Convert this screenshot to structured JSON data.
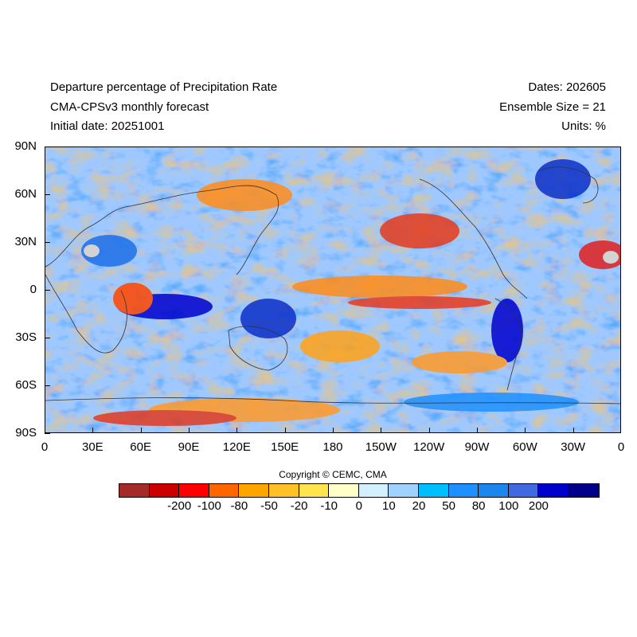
{
  "header": {
    "left_lines": [
      "Departure percentage of Precipitation Rate",
      "CMA-CPSv3 monthly forecast",
      "Initial date: 20251001"
    ],
    "right_lines": [
      "Dates: 202605",
      "Ensemble Size = 21",
      "Units: %"
    ]
  },
  "map": {
    "y_axis_labels": [
      "90N",
      "60N",
      "30N",
      "0",
      "30S",
      "60S",
      "90S"
    ],
    "x_axis_labels": [
      "0",
      "30E",
      "60E",
      "90E",
      "120E",
      "150E",
      "180",
      "150W",
      "120W",
      "90W",
      "60W",
      "30W",
      "0"
    ],
    "projection_note_colors": {
      "ocean_base": "#9ec8ff",
      "land_missing": "#d3d3d3"
    }
  },
  "footer": {
    "copyright": "Copyright © CEMC, CMA"
  },
  "colorbar": {
    "colors": [
      "#a52a2a",
      "#cc0000",
      "#ff0000",
      "#ff6600",
      "#ffa500",
      "#ffc125",
      "#ffe44d",
      "#ffffc8",
      "#d2f0ff",
      "#a0d2ff",
      "#00bfff",
      "#1e90ff",
      "#1c86ee",
      "#4169e1",
      "#0000cd",
      "#00008b"
    ],
    "labels": [
      "-200",
      "-100",
      "-80",
      "-50",
      "-20",
      "-10",
      "0",
      "10",
      "20",
      "50",
      "80",
      "100",
      "200"
    ]
  }
}
